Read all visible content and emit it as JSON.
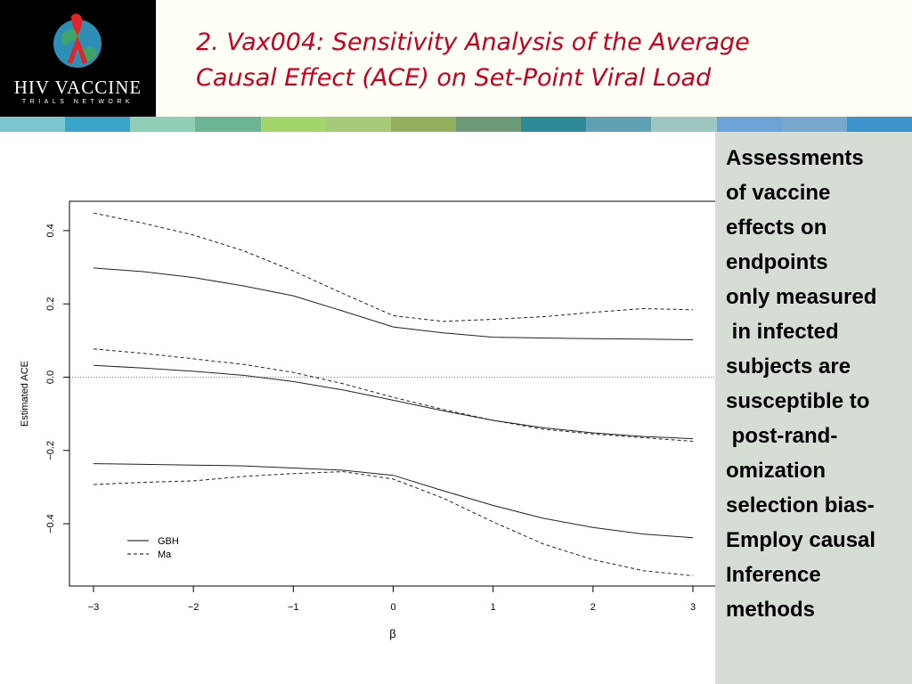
{
  "logo": {
    "title": "HIV VACCINE",
    "subtitle": "TRIALS NETWORK"
  },
  "slide": {
    "title_line1": "2. Vax004: Sensitivity Analysis of the Average",
    "title_line2": "Causal Effect (ACE) on Set-Point Viral Load"
  },
  "colors": {
    "title": "#c8001e",
    "sidebar_bg": "#d5ddd5",
    "stripe": [
      "#7ac6cf",
      "#3aa3c8",
      "#8fcfb6",
      "#6bb594",
      "#a2d66c",
      "#a6c97a",
      "#95b05c",
      "#6c9a78",
      "#2f8a98",
      "#5fa0b4",
      "#9fc7c2",
      "#6ca4d7",
      "#7aa7cd",
      "#3d95cc"
    ]
  },
  "sidebar": {
    "lines": [
      "Assessments",
      "of vaccine",
      "effects on",
      "endpoints",
      "only measured",
      " in infected",
      "subjects are",
      "susceptible to",
      " post-rand-",
      "omization",
      "selection bias-",
      "Employ causal",
      "Inference",
      "methods"
    ]
  },
  "chart_data": {
    "type": "line",
    "xlabel": "β",
    "ylabel": "Estimated ACE",
    "xlim": [
      -3,
      3
    ],
    "ylim": [
      -0.57,
      0.48
    ],
    "xticks": [
      "−3",
      "−2",
      "−1",
      "0",
      "1",
      "2",
      "3"
    ],
    "yticks": [
      "0.4",
      "0.2",
      "0.0",
      "−0.2",
      "−0.4"
    ],
    "reference_line": 0.0,
    "legend": {
      "position": "bottom-left",
      "entries": [
        {
          "label": "GBH",
          "style": "solid"
        },
        {
          "label": "Ma",
          "style": "dashed"
        }
      ]
    },
    "series": [
      {
        "name": "GBH",
        "role": "upper",
        "style": "solid",
        "x": [
          -3,
          -2.5,
          -2,
          -1.5,
          -1,
          -0.5,
          0,
          0.5,
          1,
          1.5,
          2,
          2.5,
          3
        ],
        "y": [
          0.298,
          0.288,
          0.272,
          0.249,
          0.222,
          0.18,
          0.137,
          0.121,
          0.109,
          0.107,
          0.105,
          0.104,
          0.102
        ]
      },
      {
        "name": "GBH",
        "role": "estimate",
        "style": "solid",
        "x": [
          -3,
          -2.5,
          -2,
          -1.5,
          -1,
          -0.5,
          0,
          0.5,
          1,
          1.5,
          2,
          2.5,
          3
        ],
        "y": [
          0.032,
          0.025,
          0.016,
          0.005,
          -0.012,
          -0.035,
          -0.063,
          -0.092,
          -0.118,
          -0.138,
          -0.152,
          -0.162,
          -0.168
        ]
      },
      {
        "name": "GBH",
        "role": "lower",
        "style": "solid",
        "x": [
          -3,
          -2.5,
          -2,
          -1.5,
          -1,
          -0.5,
          0,
          0.5,
          1,
          1.5,
          2,
          2.5,
          3
        ],
        "y": [
          -0.236,
          -0.238,
          -0.24,
          -0.242,
          -0.248,
          -0.254,
          -0.268,
          -0.31,
          -0.35,
          -0.385,
          -0.41,
          -0.428,
          -0.438
        ]
      },
      {
        "name": "Ma",
        "role": "upper",
        "style": "dashed",
        "x": [
          -3,
          -2.5,
          -2,
          -1.5,
          -1,
          -0.5,
          0,
          0.5,
          1,
          1.5,
          2,
          2.5,
          3
        ],
        "y": [
          0.448,
          0.42,
          0.388,
          0.345,
          0.29,
          0.228,
          0.168,
          0.152,
          0.158,
          0.165,
          0.177,
          0.187,
          0.184
        ]
      },
      {
        "name": "Ma",
        "role": "estimate",
        "style": "dashed",
        "x": [
          -3,
          -2.5,
          -2,
          -1.5,
          -1,
          -0.5,
          0,
          0.5,
          1,
          1.5,
          2,
          2.5,
          3
        ],
        "y": [
          0.077,
          0.065,
          0.05,
          0.035,
          0.013,
          -0.018,
          -0.055,
          -0.088,
          -0.118,
          -0.142,
          -0.155,
          -0.165,
          -0.175
        ]
      },
      {
        "name": "Ma",
        "role": "lower",
        "style": "dashed",
        "x": [
          -3,
          -2.5,
          -2,
          -1.5,
          -1,
          -0.5,
          0,
          0.5,
          1,
          1.5,
          2,
          2.5,
          3
        ],
        "y": [
          -0.293,
          -0.287,
          -0.283,
          -0.271,
          -0.263,
          -0.258,
          -0.278,
          -0.33,
          -0.395,
          -0.455,
          -0.498,
          -0.528,
          -0.542
        ]
      }
    ]
  }
}
